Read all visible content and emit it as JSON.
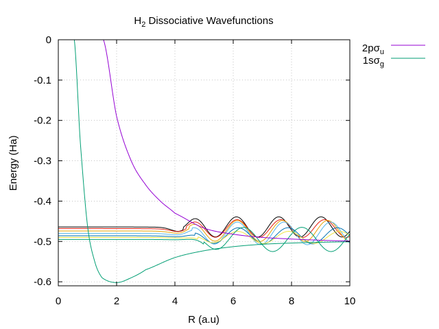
{
  "chart_data": {
    "type": "line",
    "title": "H₂ Dissociative Wavefunctions",
    "title_main": "H",
    "title_sub": "2",
    "title_rest": " Dissociative Wavefunctions",
    "xlabel": "R (a.u)",
    "ylabel": "Energy (Ha)",
    "xlim": [
      0,
      10
    ],
    "ylim": [
      -0.61,
      0
    ],
    "x_ticks": [
      "0",
      "2",
      "4",
      "6",
      "8",
      "10"
    ],
    "y_ticks": [
      "0",
      "-0.1",
      "-0.2",
      "-0.3",
      "-0.4",
      "-0.5",
      "-0.6"
    ],
    "grid": true,
    "legend": {
      "placement": "outside-top-right",
      "entries": [
        {
          "main": "2pσ",
          "sub": "u",
          "color": "#9400d3"
        },
        {
          "main": "1sσ",
          "sub": "g",
          "color": "#009e73"
        }
      ]
    },
    "potentials": [
      {
        "name": "2pσu",
        "color": "#9400d3",
        "type": "repulsive",
        "asymptote": -0.5,
        "x": [
          1.55,
          2.0,
          2.5,
          3.0,
          3.5,
          4.0,
          5.0,
          6.0,
          7.0,
          8.0,
          9.0,
          10.0
        ],
        "y": [
          0.0,
          -0.19,
          -0.3,
          -0.36,
          -0.4,
          -0.43,
          -0.467,
          -0.482,
          -0.49,
          -0.494,
          -0.497,
          -0.499
        ]
      },
      {
        "name": "1sσg",
        "color": "#009e73",
        "type": "bound",
        "asymptote": -0.5,
        "x": [
          0.55,
          0.75,
          1.0,
          1.25,
          1.5,
          2.0,
          2.5,
          3.0,
          4.0,
          5.0,
          6.0,
          7.0,
          8.0,
          9.0,
          10.0
        ],
        "y": [
          0.0,
          -0.25,
          -0.46,
          -0.55,
          -0.59,
          -0.602,
          -0.59,
          -0.57,
          -0.54,
          -0.523,
          -0.513,
          -0.507,
          -0.504,
          -0.502,
          -0.501
        ],
        "min": [
          2.0,
          -0.602
        ]
      }
    ],
    "wavefunctions": [
      {
        "color": "#000000",
        "energy": -0.464,
        "amplitude": 0.025,
        "period": 1.45,
        "onset": 4.3
      },
      {
        "color": "#e51e10",
        "energy": -0.468,
        "amplitude": 0.022,
        "period": 1.5,
        "onset": 4.4
      },
      {
        "color": "#e6a000",
        "energy": -0.474,
        "amplitude": 0.026,
        "period": 1.55,
        "onset": 4.5
      },
      {
        "color": "#56b4e9",
        "energy": -0.48,
        "amplitude": 0.028,
        "period": 1.6,
        "onset": 4.6
      },
      {
        "color": "#0072b2",
        "energy": -0.486,
        "amplitude": 0.02,
        "period": 1.7,
        "onset": 4.7
      },
      {
        "color": "#f0e442",
        "energy": -0.49,
        "amplitude": 0.015,
        "period": 1.75,
        "onset": 4.8
      },
      {
        "color": "#009e73",
        "energy": -0.495,
        "amplitude": 0.03,
        "period": 2.0,
        "onset": 5.0
      }
    ]
  }
}
